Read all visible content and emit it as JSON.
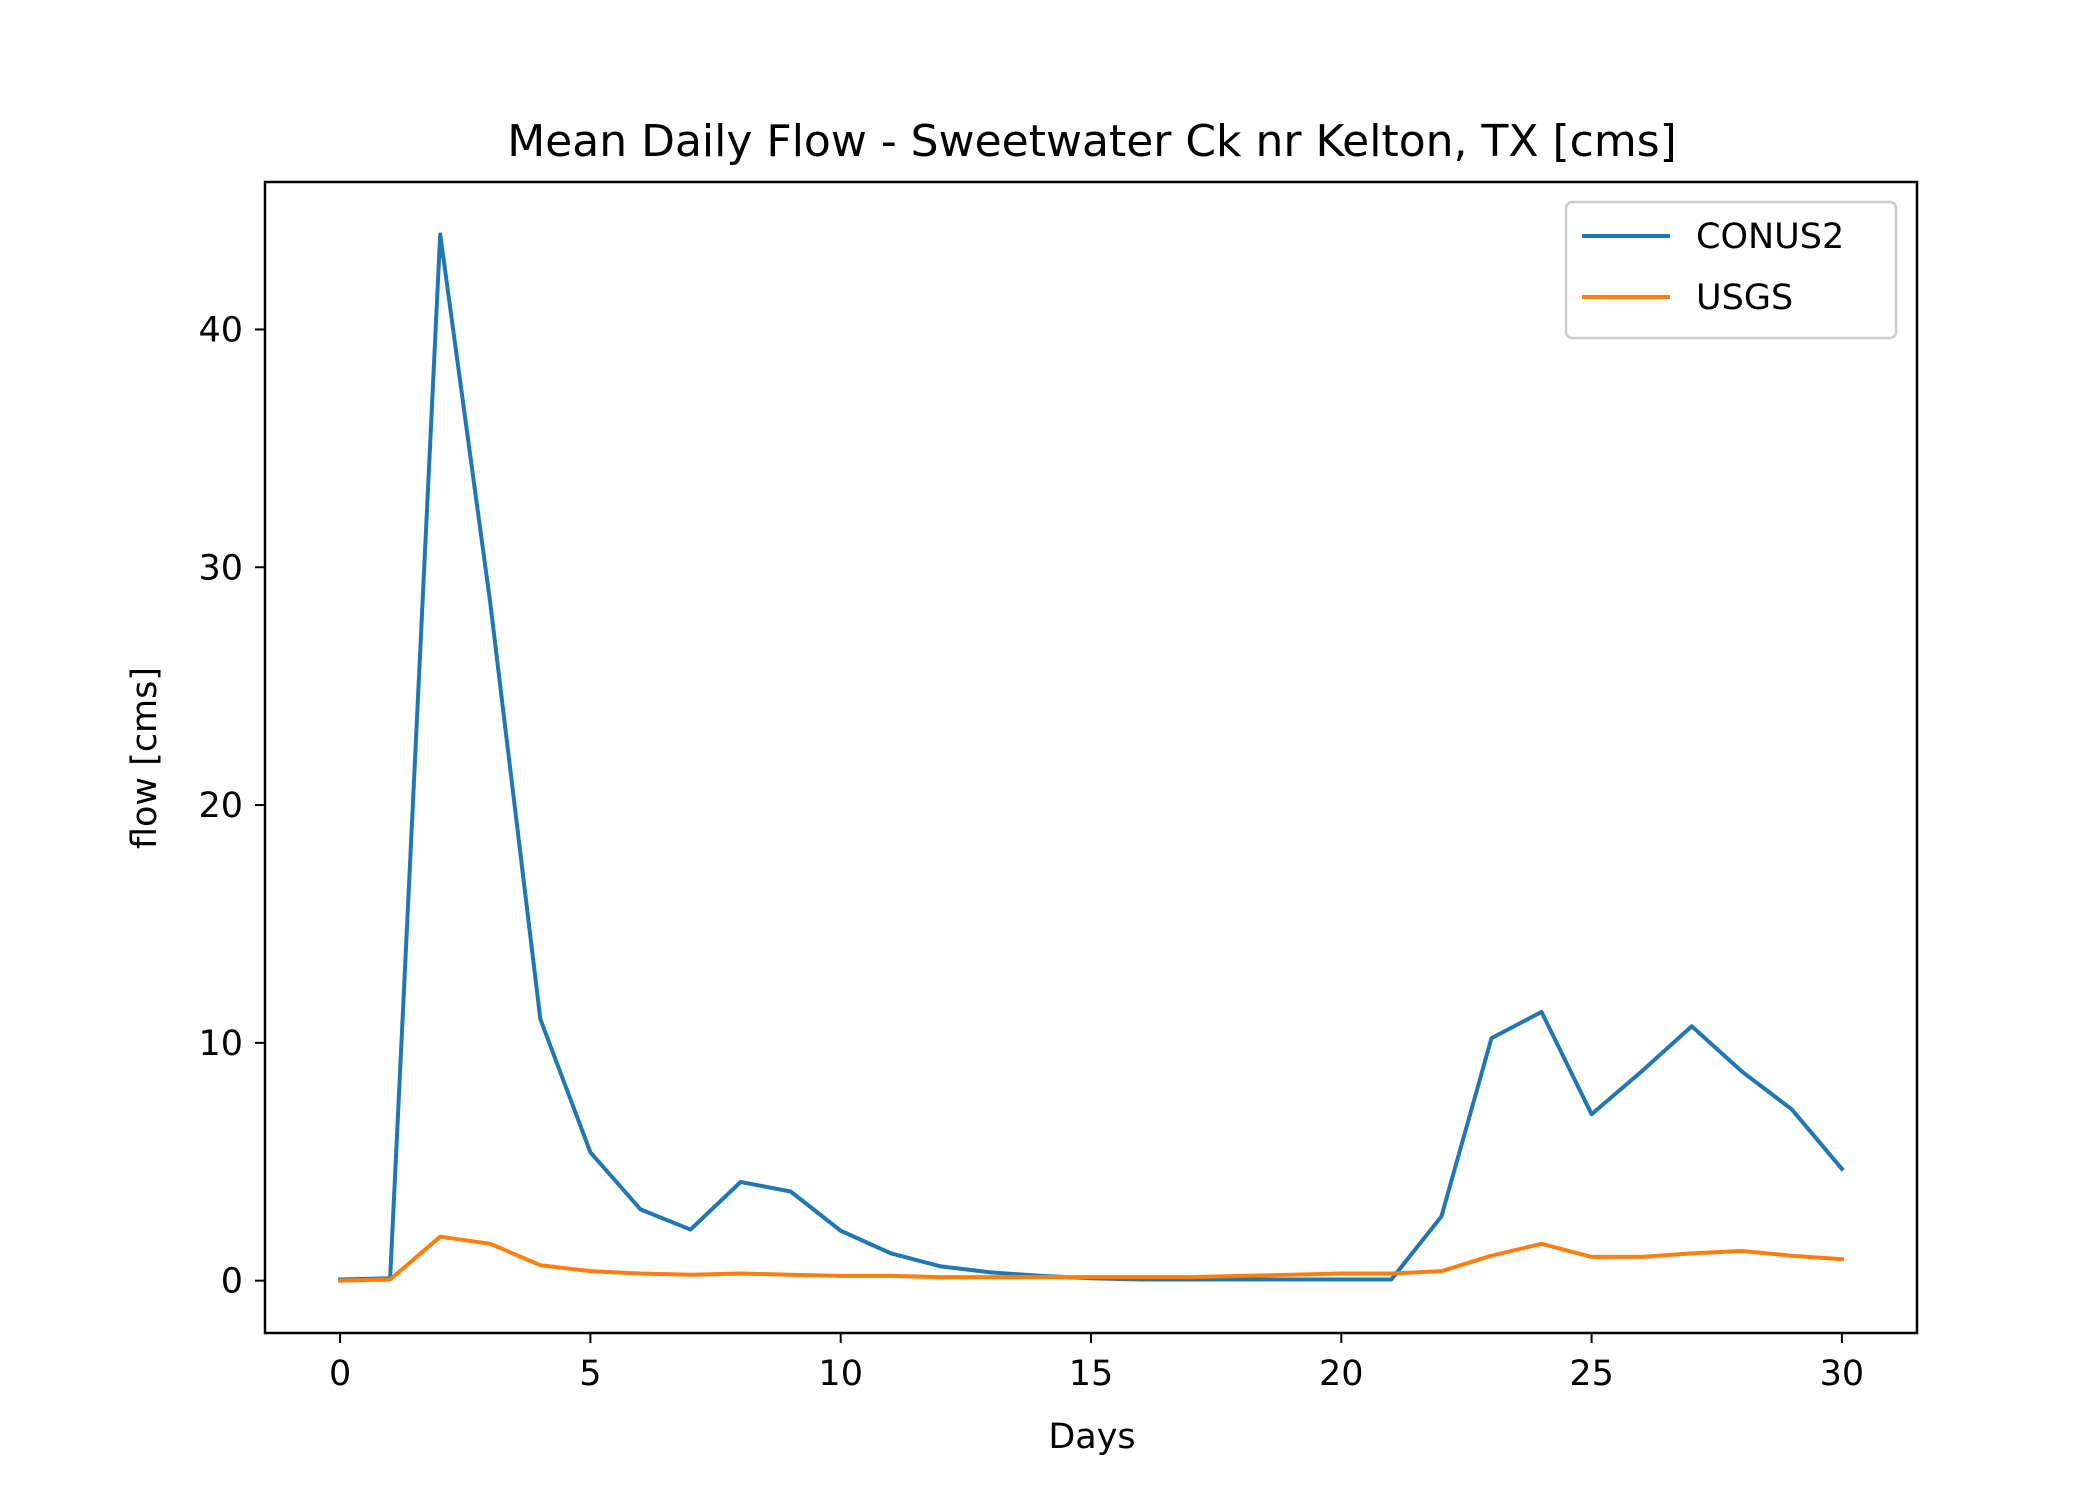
{
  "chart_data": {
    "type": "line",
    "title": "Mean Daily Flow - Sweetwater Ck nr Kelton, TX [cms]",
    "xlabel": "Days",
    "ylabel": "flow [cms]",
    "xlim": [
      -1.5,
      31.5
    ],
    "ylim": [
      -2.2,
      46.2
    ],
    "xticks": [
      0,
      5,
      10,
      15,
      20,
      25,
      30
    ],
    "yticks": [
      0,
      10,
      20,
      30,
      40
    ],
    "grid": false,
    "legend_position": "top-right",
    "x": [
      0,
      1,
      2,
      3,
      4,
      5,
      6,
      7,
      8,
      9,
      10,
      11,
      12,
      13,
      14,
      15,
      16,
      17,
      18,
      19,
      20,
      21,
      22,
      23,
      24,
      25,
      26,
      27,
      28,
      29,
      30
    ],
    "series": [
      {
        "name": "CONUS2",
        "color": "#1f77b4",
        "values": [
          0.05,
          0.1,
          44.0,
          28.5,
          11.0,
          5.4,
          3.0,
          2.15,
          4.15,
          3.75,
          2.1,
          1.15,
          0.6,
          0.35,
          0.2,
          0.1,
          0.05,
          0.05,
          0.05,
          0.05,
          0.05,
          0.05,
          2.7,
          10.2,
          11.3,
          7.0,
          8.8,
          10.7,
          8.8,
          7.2,
          4.7
        ]
      },
      {
        "name": "USGS",
        "color": "#ff7f0e",
        "values": [
          0.0,
          0.05,
          1.85,
          1.55,
          0.65,
          0.4,
          0.3,
          0.25,
          0.3,
          0.25,
          0.2,
          0.2,
          0.15,
          0.15,
          0.15,
          0.15,
          0.15,
          0.15,
          0.2,
          0.25,
          0.3,
          0.3,
          0.4,
          1.05,
          1.55,
          1.0,
          1.0,
          1.15,
          1.25,
          1.05,
          0.9
        ]
      }
    ]
  }
}
